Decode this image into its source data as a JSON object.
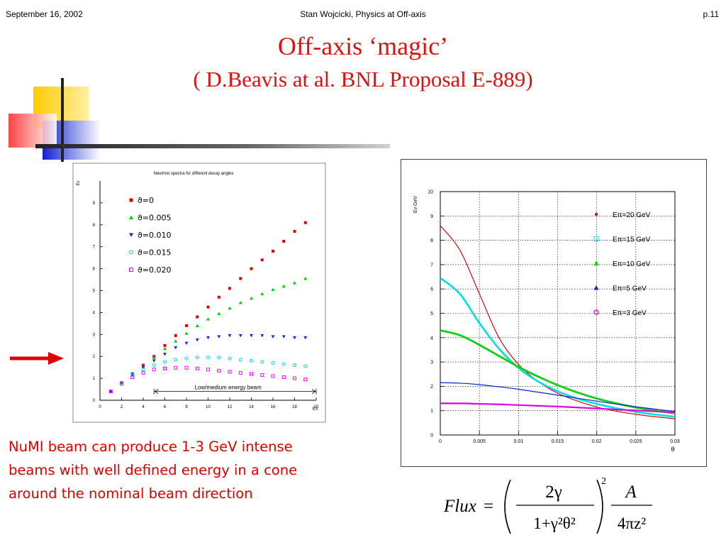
{
  "header": {
    "date": "September 16, 2002",
    "author": "Stan Wojcicki,  Physics at Off-axis",
    "page": "p.11"
  },
  "title": {
    "line1": "Off-axis ‘magic’",
    "line2": "( D.Beavis at al. BNL Proposal E-889)"
  },
  "colors": {
    "title": "#e01010",
    "caption": "#e00000",
    "arrow": "#e00000"
  },
  "decor": {
    "arrow_icon": "right-arrow-icon"
  },
  "caption": [
    "NuMI beam can produce 1-3 GeV intense",
    "beams with well defined energy in a cone",
    "around the nominal beam direction"
  ],
  "chart_data": [
    {
      "type": "scatter",
      "title": "Neutrino spectra for different decay angles",
      "xlabel": "Eπ",
      "ylabel": "Eν",
      "xlim": [
        0,
        20
      ],
      "ylim": [
        0,
        10
      ],
      "xticks": [
        0,
        2,
        4,
        6,
        8,
        10,
        12,
        14,
        16,
        18,
        20
      ],
      "yticks": [
        0,
        1,
        2,
        3,
        4,
        5,
        6,
        7,
        8,
        9
      ],
      "legend_position": "top-left",
      "annotation": {
        "text": "Low/medium energy beam",
        "x_from": 5,
        "x_to": 20,
        "y": 0.4
      },
      "x": [
        1,
        2,
        3,
        4,
        5,
        6,
        7,
        8,
        9,
        10,
        11,
        12,
        13,
        14,
        15,
        16,
        17,
        18,
        19
      ],
      "series": [
        {
          "name": "ϑ=0",
          "color": "#e00000",
          "marker": "square",
          "values": [
            0.4,
            0.8,
            1.2,
            1.6,
            2.0,
            2.5,
            2.95,
            3.4,
            3.8,
            4.25,
            4.7,
            5.1,
            5.55,
            6.0,
            6.4,
            6.8,
            7.25,
            7.7,
            8.1
          ]
        },
        {
          "name": "ϑ=0.005",
          "color": "#00cc00",
          "marker": "triangle-up",
          "values": [
            0.4,
            0.8,
            1.2,
            1.55,
            1.95,
            2.35,
            2.7,
            3.05,
            3.4,
            3.7,
            3.95,
            4.2,
            4.45,
            4.65,
            4.85,
            5.05,
            5.2,
            5.35,
            5.55
          ]
        },
        {
          "name": "ϑ=0.010",
          "color": "#1030e0",
          "marker": "triangle-down",
          "values": [
            0.4,
            0.8,
            1.2,
            1.5,
            1.8,
            2.1,
            2.4,
            2.6,
            2.75,
            2.85,
            2.9,
            2.95,
            2.95,
            2.95,
            2.95,
            2.9,
            2.9,
            2.85,
            2.85
          ]
        },
        {
          "name": "ϑ=0.015",
          "color": "#00d8d8",
          "marker": "circle",
          "values": [
            0.4,
            0.8,
            1.15,
            1.4,
            1.6,
            1.75,
            1.85,
            1.9,
            1.95,
            1.95,
            1.95,
            1.9,
            1.85,
            1.8,
            1.75,
            1.7,
            1.65,
            1.6,
            1.55
          ]
        },
        {
          "name": "ϑ=0.020",
          "color": "#ff00ff",
          "marker": "square-open",
          "values": [
            0.4,
            0.75,
            1.05,
            1.25,
            1.4,
            1.45,
            1.48,
            1.48,
            1.45,
            1.4,
            1.35,
            1.3,
            1.25,
            1.2,
            1.15,
            1.1,
            1.05,
            1.0,
            0.95
          ]
        }
      ]
    },
    {
      "type": "line",
      "xlabel": "θ",
      "ylabel": "Eν GeV",
      "xlim": [
        0,
        0.03
      ],
      "ylim": [
        0,
        10
      ],
      "xticks": [
        0,
        0.005,
        0.01,
        0.015,
        0.02,
        0.025,
        0.03
      ],
      "yticks": [
        0,
        1,
        2,
        3,
        4,
        5,
        6,
        7,
        8,
        9,
        10
      ],
      "grid": true,
      "legend_position": "top-right",
      "x": [
        0,
        0.0025,
        0.005,
        0.0075,
        0.01,
        0.0125,
        0.015,
        0.0175,
        0.02,
        0.0225,
        0.025,
        0.0275,
        0.03
      ],
      "series": [
        {
          "name": "Eπ=20 GeV",
          "color": "#cc1010",
          "marker": "dot",
          "values": [
            8.6,
            7.6,
            5.8,
            4.0,
            2.9,
            2.2,
            1.72,
            1.4,
            1.15,
            0.98,
            0.85,
            0.75,
            0.67
          ]
        },
        {
          "name": "Eπ=15 GeV",
          "color": "#00e0e0",
          "marker": "square-open",
          "values": [
            6.45,
            5.8,
            4.6,
            3.55,
            2.75,
            2.2,
            1.8,
            1.5,
            1.28,
            1.1,
            0.95,
            0.84,
            0.75
          ]
        },
        {
          "name": "Eπ=10 GeV",
          "color": "#10d010",
          "marker": "triangle-up",
          "values": [
            4.3,
            4.1,
            3.7,
            3.25,
            2.8,
            2.4,
            2.05,
            1.75,
            1.5,
            1.3,
            1.13,
            1.0,
            0.89
          ]
        },
        {
          "name": "Eπ=5 GeV",
          "color": "#1020d0",
          "marker": "triangle-up",
          "values": [
            2.15,
            2.13,
            2.07,
            1.98,
            1.88,
            1.76,
            1.64,
            1.51,
            1.39,
            1.27,
            1.16,
            1.06,
            0.97
          ]
        },
        {
          "name": "Eπ=3 GeV",
          "color": "#e000e0",
          "marker": "circle-open",
          "values": [
            1.3,
            1.3,
            1.28,
            1.26,
            1.23,
            1.2,
            1.17,
            1.13,
            1.09,
            1.05,
            1.01,
            0.97,
            0.93
          ]
        }
      ]
    }
  ],
  "formula": {
    "lhs": "Flux",
    "eq": "=",
    "num1": "2γ",
    "den1": "1+γ²θ²",
    "power": "2",
    "num2": "A",
    "den2": "4πz²"
  }
}
